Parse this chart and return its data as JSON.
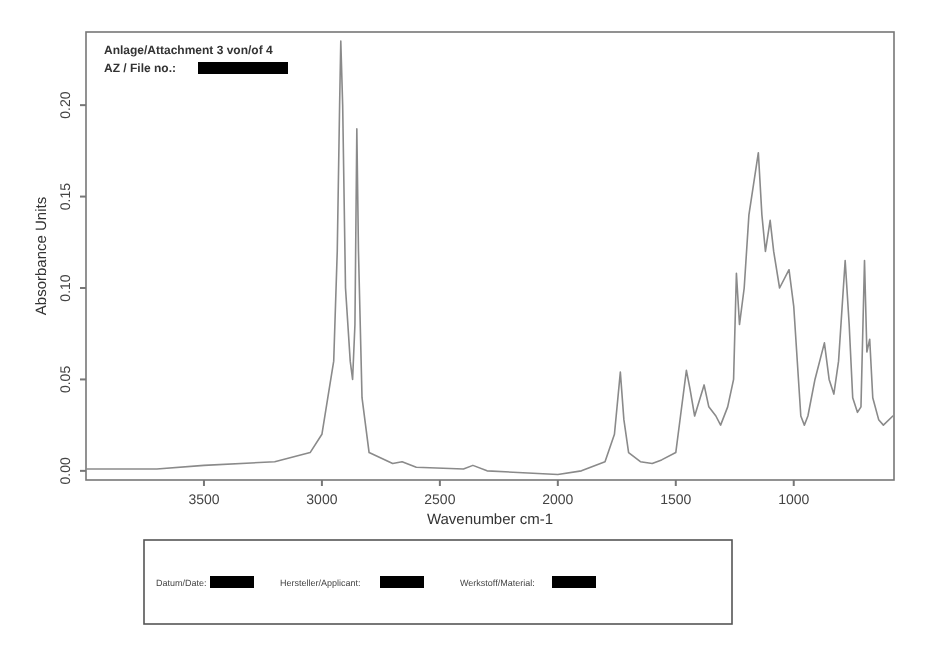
{
  "chart_data": {
    "type": "line",
    "xlabel": "Wavenumber cm-1",
    "ylabel": "Absorbance Units",
    "xlim": [
      4000,
      575
    ],
    "ylim": [
      -0.005,
      0.24
    ],
    "xticks": [
      3500,
      3000,
      2500,
      2000,
      1500,
      1000
    ],
    "yticks": [
      {
        "value": 0,
        "label": "0.00"
      },
      {
        "value": 0.05,
        "label": "0.05"
      },
      {
        "value": 0.1,
        "label": "0.10"
      },
      {
        "value": 0.15,
        "label": "0.15"
      },
      {
        "value": 0.2,
        "label": "0.20"
      }
    ],
    "grid": false,
    "marker": "none",
    "line_style": "solid",
    "annotations": [
      "Anlage/Attachment 3 von/of 4",
      "AZ / File no.:",
      "Datum/Date:",
      "Hersteller/Applicant:",
      "Werkstoff/Material:"
    ],
    "x": [
      4000,
      3700,
      3500,
      3200,
      3050,
      3000,
      2975,
      2950,
      2935,
      2925,
      2920,
      2912,
      2900,
      2880,
      2870,
      2860,
      2852,
      2845,
      2830,
      2800,
      2700,
      2660,
      2600,
      2400,
      2360,
      2300,
      2000,
      1900,
      1800,
      1760,
      1735,
      1720,
      1700,
      1650,
      1600,
      1560,
      1500,
      1480,
      1455,
      1440,
      1420,
      1380,
      1360,
      1330,
      1310,
      1280,
      1255,
      1243,
      1230,
      1210,
      1190,
      1150,
      1135,
      1120,
      1100,
      1085,
      1060,
      1020,
      1000,
      970,
      955,
      940,
      910,
      870,
      850,
      830,
      810,
      782,
      765,
      750,
      730,
      715,
      700,
      690,
      678,
      665,
      640,
      620,
      580
    ],
    "series": [
      {
        "color": "#8a8a8a",
        "values": [
          0.001,
          0.001,
          0.003,
          0.005,
          0.01,
          0.02,
          0.04,
          0.06,
          0.12,
          0.2,
          0.235,
          0.2,
          0.1,
          0.06,
          0.05,
          0.08,
          0.187,
          0.12,
          0.04,
          0.01,
          0.004,
          0.005,
          0.002,
          0.001,
          0.003,
          0,
          -0.002,
          0,
          0.005,
          0.02,
          0.054,
          0.028,
          0.01,
          0.005,
          0.004,
          0.006,
          0.01,
          0.03,
          0.055,
          0.045,
          0.03,
          0.047,
          0.035,
          0.03,
          0.025,
          0.035,
          0.05,
          0.108,
          0.08,
          0.1,
          0.14,
          0.174,
          0.14,
          0.12,
          0.137,
          0.12,
          0.1,
          0.11,
          0.09,
          0.03,
          0.025,
          0.03,
          0.05,
          0.07,
          0.05,
          0.042,
          0.06,
          0.115,
          0.08,
          0.04,
          0.032,
          0.035,
          0.115,
          0.065,
          0.072,
          0.04,
          0.028,
          0.025,
          0.03
        ]
      }
    ]
  }
}
